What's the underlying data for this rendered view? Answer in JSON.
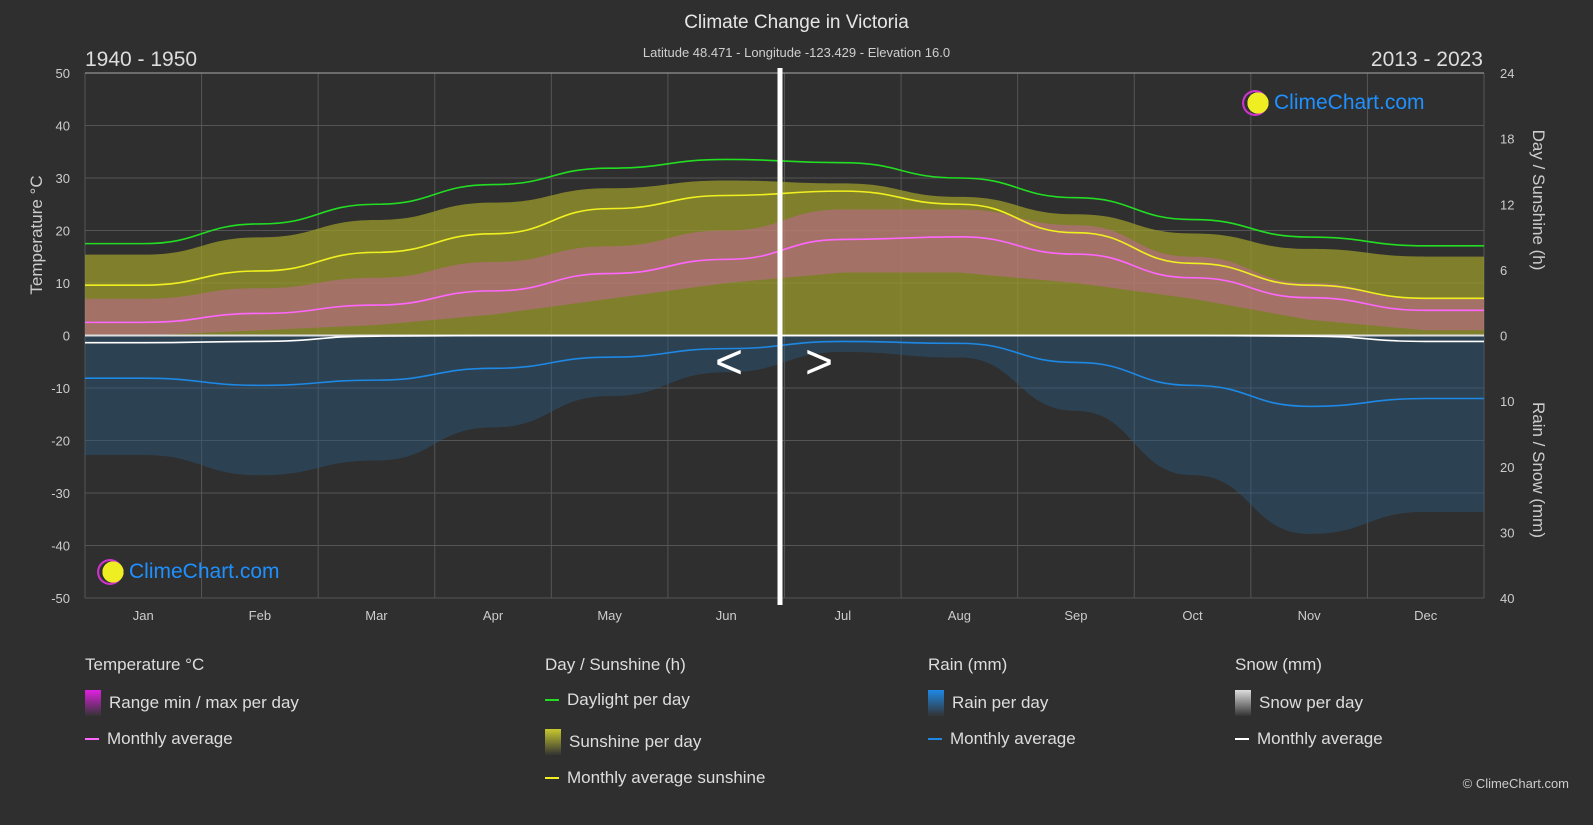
{
  "header": {
    "title": "Climate Change in Victoria",
    "subtitle": "Latitude 48.471 - Longitude -123.429 - Elevation 16.0",
    "period_left": "1940 - 1950",
    "period_right": "2013 - 2023",
    "nav_prev": "<",
    "nav_next": ">"
  },
  "logo_text": "ClimeChart.com",
  "copyright": "© ClimeChart.com",
  "chart_data": {
    "type": "line",
    "categories": [
      "Jan",
      "Feb",
      "Mar",
      "Apr",
      "May",
      "Jun",
      "Jul",
      "Aug",
      "Sep",
      "Oct",
      "Nov",
      "Dec"
    ],
    "y_left": {
      "label": "Temperature °C",
      "range": [
        -50,
        50
      ],
      "ticks": [
        50,
        40,
        30,
        20,
        10,
        0,
        -10,
        -20,
        -30,
        -40,
        -50
      ]
    },
    "y_right_top": {
      "label": "Day / Sunshine (h)",
      "range": [
        0,
        24
      ],
      "ticks": [
        24,
        18,
        12,
        6,
        0
      ]
    },
    "y_right_bottom": {
      "label": "Rain / Snow (mm)",
      "range": [
        0,
        40
      ],
      "ticks": [
        0,
        10,
        20,
        30,
        40
      ]
    },
    "grid": true,
    "series": [
      {
        "name": "Monthly average",
        "group": "temperature",
        "color": "#ff66ff",
        "values": [
          2.5,
          4.2,
          5.8,
          8.5,
          11.8,
          14.5,
          18.3,
          18.8,
          15.5,
          11.0,
          7.2,
          4.8
        ]
      },
      {
        "name": "Daylight per day",
        "group": "sunshine",
        "color": "#22dd22",
        "values": [
          8.4,
          10.2,
          12.0,
          13.8,
          15.3,
          16.1,
          15.8,
          14.4,
          12.6,
          10.6,
          9.0,
          8.2
        ]
      },
      {
        "name": "Monthly average sunshine",
        "group": "sunshine",
        "color": "#f0f020",
        "values": [
          4.6,
          5.9,
          7.6,
          9.3,
          11.6,
          12.8,
          13.2,
          12.0,
          9.4,
          6.6,
          4.6,
          3.4
        ]
      },
      {
        "name": "Monthly average",
        "group": "rain",
        "color": "#1e88e5",
        "values": [
          6.5,
          7.6,
          6.8,
          5.0,
          3.3,
          2.0,
          0.9,
          1.2,
          4.1,
          7.6,
          10.8,
          9.6
        ]
      },
      {
        "name": "Monthly average",
        "group": "snow",
        "color": "#ffffff",
        "values": [
          1.1,
          0.9,
          0.1,
          0,
          0,
          0,
          0,
          0,
          0,
          0,
          0.1,
          0.9
        ]
      }
    ],
    "temp_range_approx": {
      "min": [
        0,
        1,
        2,
        4,
        7,
        10,
        12,
        12,
        10,
        7,
        3,
        1
      ],
      "max": [
        7,
        9,
        11,
        14,
        17,
        20,
        24,
        24,
        21,
        15,
        10,
        7
      ]
    }
  },
  "legend": [
    {
      "heading": "Temperature °C",
      "items": [
        {
          "label": "Range min / max per day",
          "swatch": "box",
          "color": "#e020e0"
        },
        {
          "label": "Monthly average",
          "swatch": "line",
          "color": "#ff66ff"
        }
      ]
    },
    {
      "heading": "Day / Sunshine (h)",
      "items": [
        {
          "label": "Daylight per day",
          "swatch": "line",
          "color": "#22dd22"
        },
        {
          "label": "Sunshine per day",
          "swatch": "box",
          "color": "#c8c830"
        },
        {
          "label": "Monthly average sunshine",
          "swatch": "line",
          "color": "#f0f020"
        }
      ]
    },
    {
      "heading": "Rain (mm)",
      "items": [
        {
          "label": "Rain per day",
          "swatch": "box",
          "color": "#1e88e5"
        },
        {
          "label": "Monthly average",
          "swatch": "line",
          "color": "#1e88e5"
        }
      ]
    },
    {
      "heading": "Snow (mm)",
      "items": [
        {
          "label": "Snow per day",
          "swatch": "box",
          "color": "#dddddd"
        },
        {
          "label": "Monthly average",
          "swatch": "line",
          "color": "#ffffff"
        }
      ]
    }
  ]
}
